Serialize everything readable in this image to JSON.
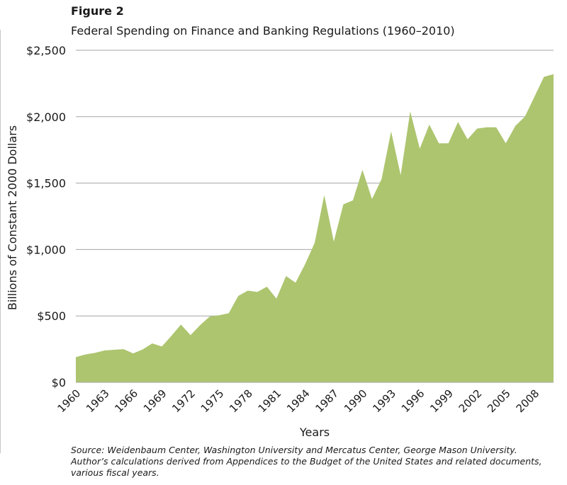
{
  "figure": {
    "label": "Figure 2",
    "title": "Federal Spending on Finance and Banking Regulations (1960–2010)",
    "source": "Source: Weidenbaum Center, Washington University and Mercatus Center, George Mason University. Author’s calculations derived from Appendices to the Budget of the United States and related documents, various fiscal years."
  },
  "chart_data": {
    "type": "area",
    "xlabel": "Years",
    "ylabel": "Billions of Constant 2000 Dollars",
    "ylim": [
      0,
      2500
    ],
    "yticks": [
      0,
      500,
      1000,
      1500,
      2000,
      2500
    ],
    "ytick_labels": [
      "$0",
      "$500",
      "$1,000",
      "$1,500",
      "$2,000",
      "$2,500"
    ],
    "xtick_labels": [
      "1960",
      "1963",
      "1966",
      "1969",
      "1972",
      "1975",
      "1978",
      "1981",
      "1984",
      "1987",
      "1990",
      "1993",
      "1996",
      "1999",
      "2002",
      "2005",
      "2008"
    ],
    "grid": "horizontal",
    "fill_color": "#adc56f",
    "x": [
      1960,
      1961,
      1962,
      1963,
      1964,
      1965,
      1966,
      1967,
      1968,
      1969,
      1970,
      1971,
      1972,
      1973,
      1974,
      1975,
      1976,
      1977,
      1978,
      1979,
      1980,
      1981,
      1982,
      1983,
      1984,
      1985,
      1986,
      1987,
      1988,
      1989,
      1990,
      1991,
      1992,
      1993,
      1994,
      1995,
      1996,
      1997,
      1998,
      1999,
      2000,
      2001,
      2002,
      2003,
      2004,
      2005,
      2006,
      2007,
      2008,
      2009,
      2010
    ],
    "values": [
      190,
      210,
      222,
      240,
      245,
      250,
      218,
      248,
      293,
      270,
      350,
      435,
      355,
      430,
      495,
      505,
      520,
      650,
      690,
      680,
      720,
      630,
      800,
      750,
      890,
      1050,
      1410,
      1060,
      1340,
      1370,
      1600,
      1380,
      1530,
      1890,
      1560,
      2040,
      1760,
      1940,
      1800,
      1800,
      1960,
      1830,
      1910,
      1920,
      1920,
      1800,
      1930,
      2000,
      2150,
      2300,
      2320
    ]
  }
}
